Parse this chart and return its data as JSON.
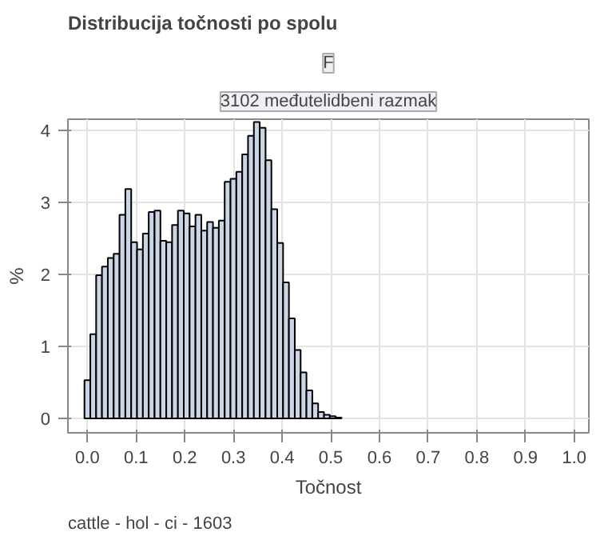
{
  "chart_data": {
    "type": "histogram",
    "title": "Distribucija točnosti po spolu",
    "subtitle": "F",
    "annotations": [
      "3102 međutelidbeni razmak",
      "cattle - hol - ci - 1603"
    ],
    "xlabel": "Točnost",
    "ylabel": "%",
    "bins": [
      -0.006,
      0.006,
      0.018,
      0.03,
      0.042,
      0.054,
      0.066,
      0.078,
      0.09,
      0.102,
      0.114,
      0.126,
      0.138,
      0.15,
      0.162,
      0.174,
      0.186,
      0.198,
      0.21,
      0.222,
      0.234,
      0.246,
      0.258,
      0.27,
      0.282,
      0.294,
      0.306,
      0.318,
      0.33,
      0.342,
      0.354,
      0.366,
      0.378,
      0.39,
      0.402,
      0.414,
      0.426,
      0.438,
      0.45,
      0.462,
      0.474,
      0.486,
      0.498,
      0.51,
      0.522
    ],
    "values": [
      0.53,
      1.17,
      1.99,
      2.11,
      2.23,
      2.29,
      2.83,
      3.19,
      2.45,
      2.35,
      2.57,
      2.87,
      2.89,
      2.47,
      2.45,
      2.69,
      2.89,
      2.85,
      2.67,
      2.83,
      2.61,
      2.73,
      2.65,
      2.75,
      3.29,
      3.33,
      3.43,
      3.67,
      3.93,
      4.12,
      4.04,
      3.59,
      2.91,
      2.44,
      1.89,
      1.39,
      0.95,
      0.64,
      0.39,
      0.21,
      0.09,
      0.05,
      0.03,
      0.01
    ],
    "color": "#cad5e5",
    "xlim": [
      -0.04,
      1.03
    ],
    "ylim": [
      -0.2,
      4.16
    ],
    "xticks": [
      {
        "value": 0,
        "label": "0.0"
      },
      0.1,
      0.2,
      0.3,
      0.4,
      0.5,
      0.6,
      0.7,
      0.8,
      0.9,
      {
        "value": 1,
        "label": "1.0"
      }
    ],
    "yticks": [
      0,
      1,
      2,
      3,
      4
    ],
    "grid": true
  }
}
